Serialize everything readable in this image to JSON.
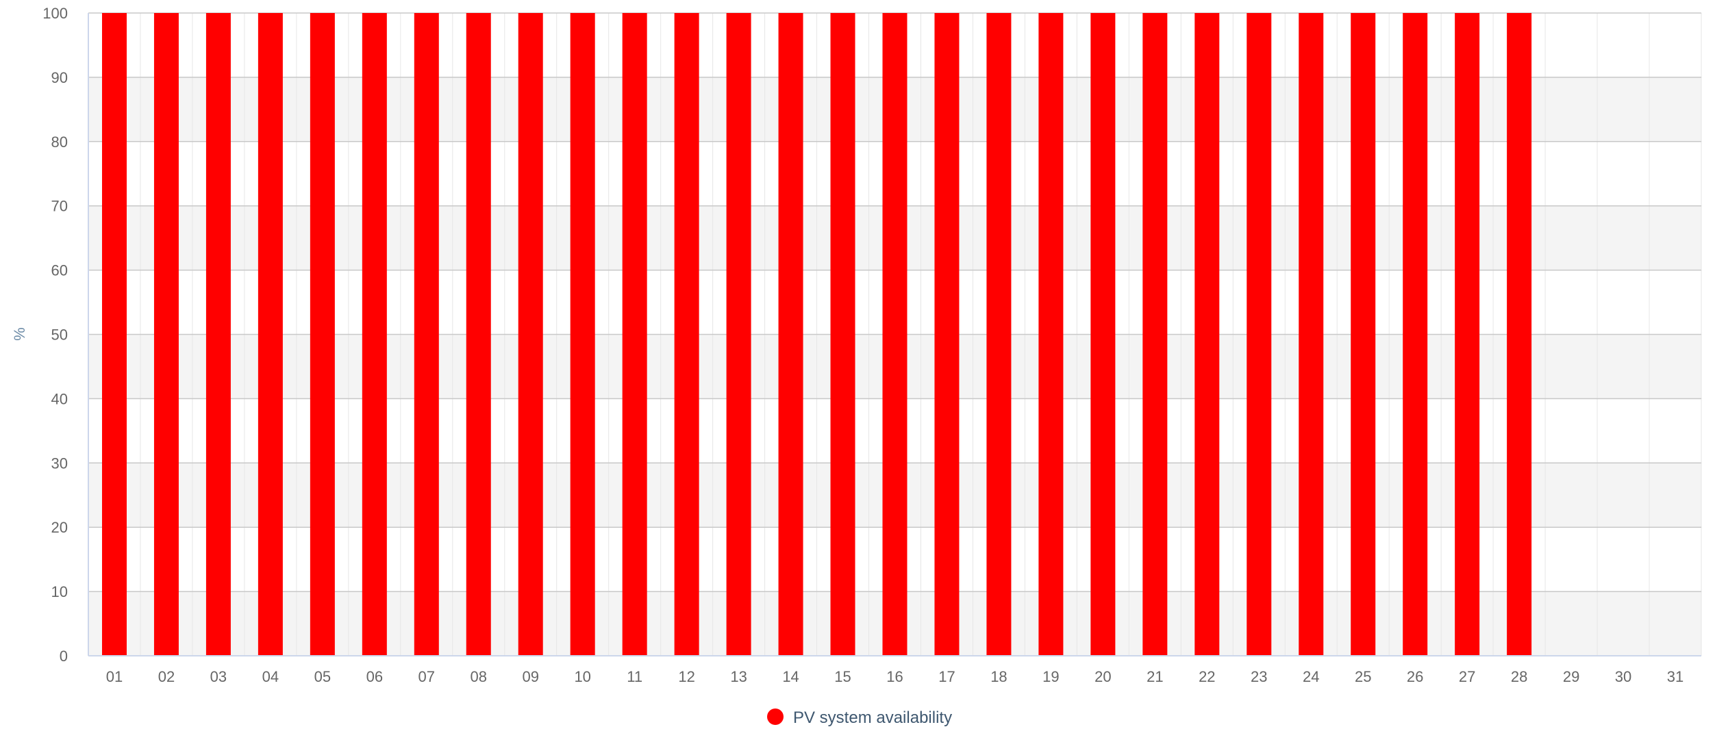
{
  "chart_data": {
    "type": "bar",
    "categories": [
      "01",
      "02",
      "03",
      "04",
      "05",
      "06",
      "07",
      "08",
      "09",
      "10",
      "11",
      "12",
      "13",
      "14",
      "15",
      "16",
      "17",
      "18",
      "19",
      "20",
      "21",
      "22",
      "23",
      "24",
      "25",
      "26",
      "27",
      "28",
      "29",
      "30",
      "31"
    ],
    "series": [
      {
        "name": "PV system availability",
        "color": "#ff0000",
        "values": [
          100,
          100,
          100,
          100,
          100,
          100,
          100,
          100,
          100,
          100,
          100,
          100,
          100,
          100,
          100,
          100,
          100,
          100,
          100,
          100,
          100,
          100,
          100,
          100,
          100,
          100,
          100,
          100,
          null,
          null,
          null
        ]
      }
    ],
    "ylabel": "%",
    "ylim": [
      0,
      100
    ],
    "yticks": [
      0,
      10,
      20,
      30,
      40,
      50,
      60,
      70,
      80,
      90,
      100
    ],
    "grid": true,
    "alternate_band_color": "#f4f4f4",
    "gridline_color": "#c8c8c8",
    "legend_placement": "bottom-center"
  }
}
